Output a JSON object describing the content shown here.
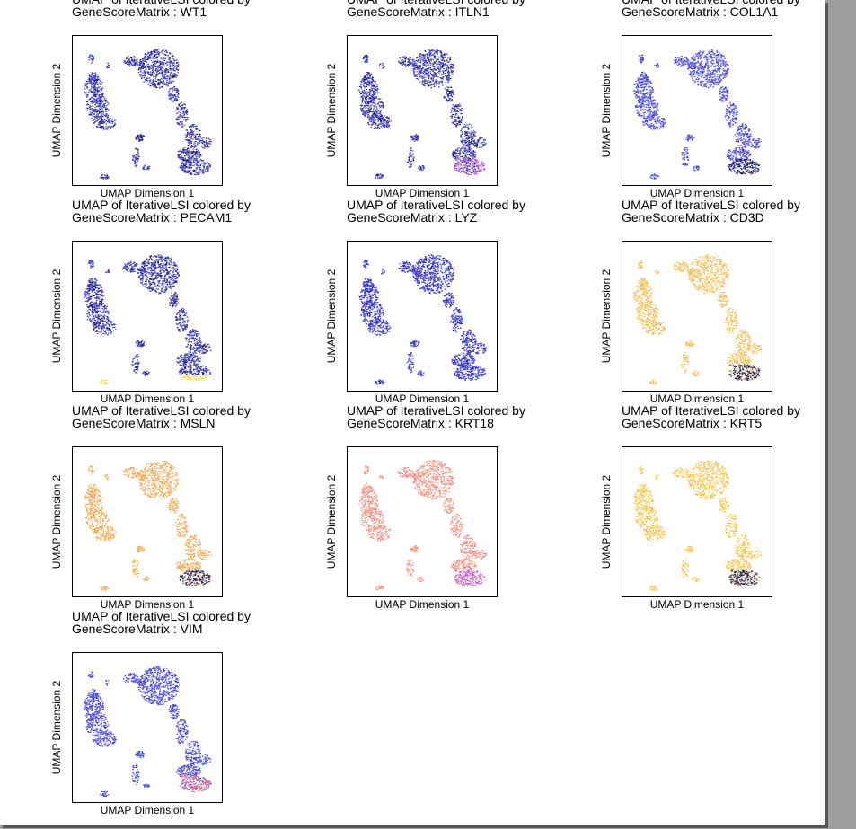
{
  "chart_data": [
    {
      "type": "scatter",
      "title_line1": "UMAP of IterativeLSI colored by",
      "title_line2": "GeneScoreMatrix : WT1",
      "xlabel": "UMAP Dimension 1",
      "ylabel": "UMAP Dimension 2",
      "palette": [
        "#1c1f5c",
        "#3a3ad6",
        "#5a5aee"
      ],
      "high_region": "none",
      "high_color": "#3a3ad6"
    },
    {
      "type": "scatter",
      "title_line1": "UMAP of IterativeLSI colored by",
      "title_line2": "GeneScoreMatrix : ITLN1",
      "xlabel": "UMAP Dimension 1",
      "ylabel": "UMAP Dimension 2",
      "palette": [
        "#1c1f5c",
        "#3a3ad6",
        "#5a5aee"
      ],
      "high_region": "bottom_right",
      "high_color": "#c060e0"
    },
    {
      "type": "scatter",
      "title_line1": "UMAP of IterativeLSI colored by",
      "title_line2": "GeneScoreMatrix : COL1A1",
      "xlabel": "UMAP Dimension 1",
      "ylabel": "UMAP Dimension 2",
      "palette": [
        "#3a3ad6",
        "#5a5aee",
        "#6b6bf5"
      ],
      "high_region": "bottom_right",
      "high_color": "#1c1f5c"
    },
    {
      "type": "scatter",
      "title_line1": "UMAP of IterativeLSI colored by",
      "title_line2": "GeneScoreMatrix : PECAM1",
      "xlabel": "UMAP Dimension 1",
      "ylabel": "UMAP Dimension 2",
      "palette": [
        "#1c1f5c",
        "#3a3ad6",
        "#5a5aee"
      ],
      "high_region": "bottom_strip",
      "high_color": "#f2e54a"
    },
    {
      "type": "scatter",
      "title_line1": "UMAP of IterativeLSI colored by",
      "title_line2": "GeneScoreMatrix : LYZ",
      "xlabel": "UMAP Dimension 1",
      "ylabel": "UMAP Dimension 2",
      "palette": [
        "#3a3ad6",
        "#5a5aee",
        "#2a2ac0"
      ],
      "high_region": "none",
      "high_color": "#3a3ad6"
    },
    {
      "type": "scatter",
      "title_line1": "UMAP of IterativeLSI colored by",
      "title_line2": "GeneScoreMatrix : CD3D",
      "xlabel": "UMAP Dimension 1",
      "ylabel": "UMAP Dimension 2",
      "palette": [
        "#f7d95c",
        "#f5c36a",
        "#f3b478"
      ],
      "high_region": "bottom_right",
      "high_color": "#1c1f5c"
    },
    {
      "type": "scatter",
      "title_line1": "UMAP of IterativeLSI colored by",
      "title_line2": "GeneScoreMatrix : MSLN",
      "xlabel": "UMAP Dimension 1",
      "ylabel": "UMAP Dimension 2",
      "palette": [
        "#f3b16a",
        "#f0a060",
        "#f7d070"
      ],
      "high_region": "bottom_right",
      "high_color": "#1c1f5c"
    },
    {
      "type": "scatter",
      "title_line1": "UMAP of IterativeLSI colored by",
      "title_line2": "GeneScoreMatrix : KRT18",
      "xlabel": "UMAP Dimension 1",
      "ylabel": "UMAP Dimension 2",
      "palette": [
        "#f2a088",
        "#ee86a0",
        "#f4b08a"
      ],
      "high_region": "bottom_right",
      "high_color": "#c060e0"
    },
    {
      "type": "scatter",
      "title_line1": "UMAP of IterativeLSI colored by",
      "title_line2": "GeneScoreMatrix : KRT5",
      "xlabel": "UMAP Dimension 1",
      "ylabel": "UMAP Dimension 2",
      "palette": [
        "#f7e05a",
        "#f5d060",
        "#f3b878"
      ],
      "high_region": "bottom_right",
      "high_color": "#1c1f5c"
    },
    {
      "type": "scatter",
      "title_line1": "UMAP of IterativeLSI colored by",
      "title_line2": "GeneScoreMatrix : VIM",
      "xlabel": "UMAP Dimension 1",
      "ylabel": "UMAP Dimension 2",
      "palette": [
        "#3a3ad6",
        "#5a5aee",
        "#6b6bf5"
      ],
      "high_region": "bottom_right",
      "high_color": "#e07890"
    }
  ]
}
